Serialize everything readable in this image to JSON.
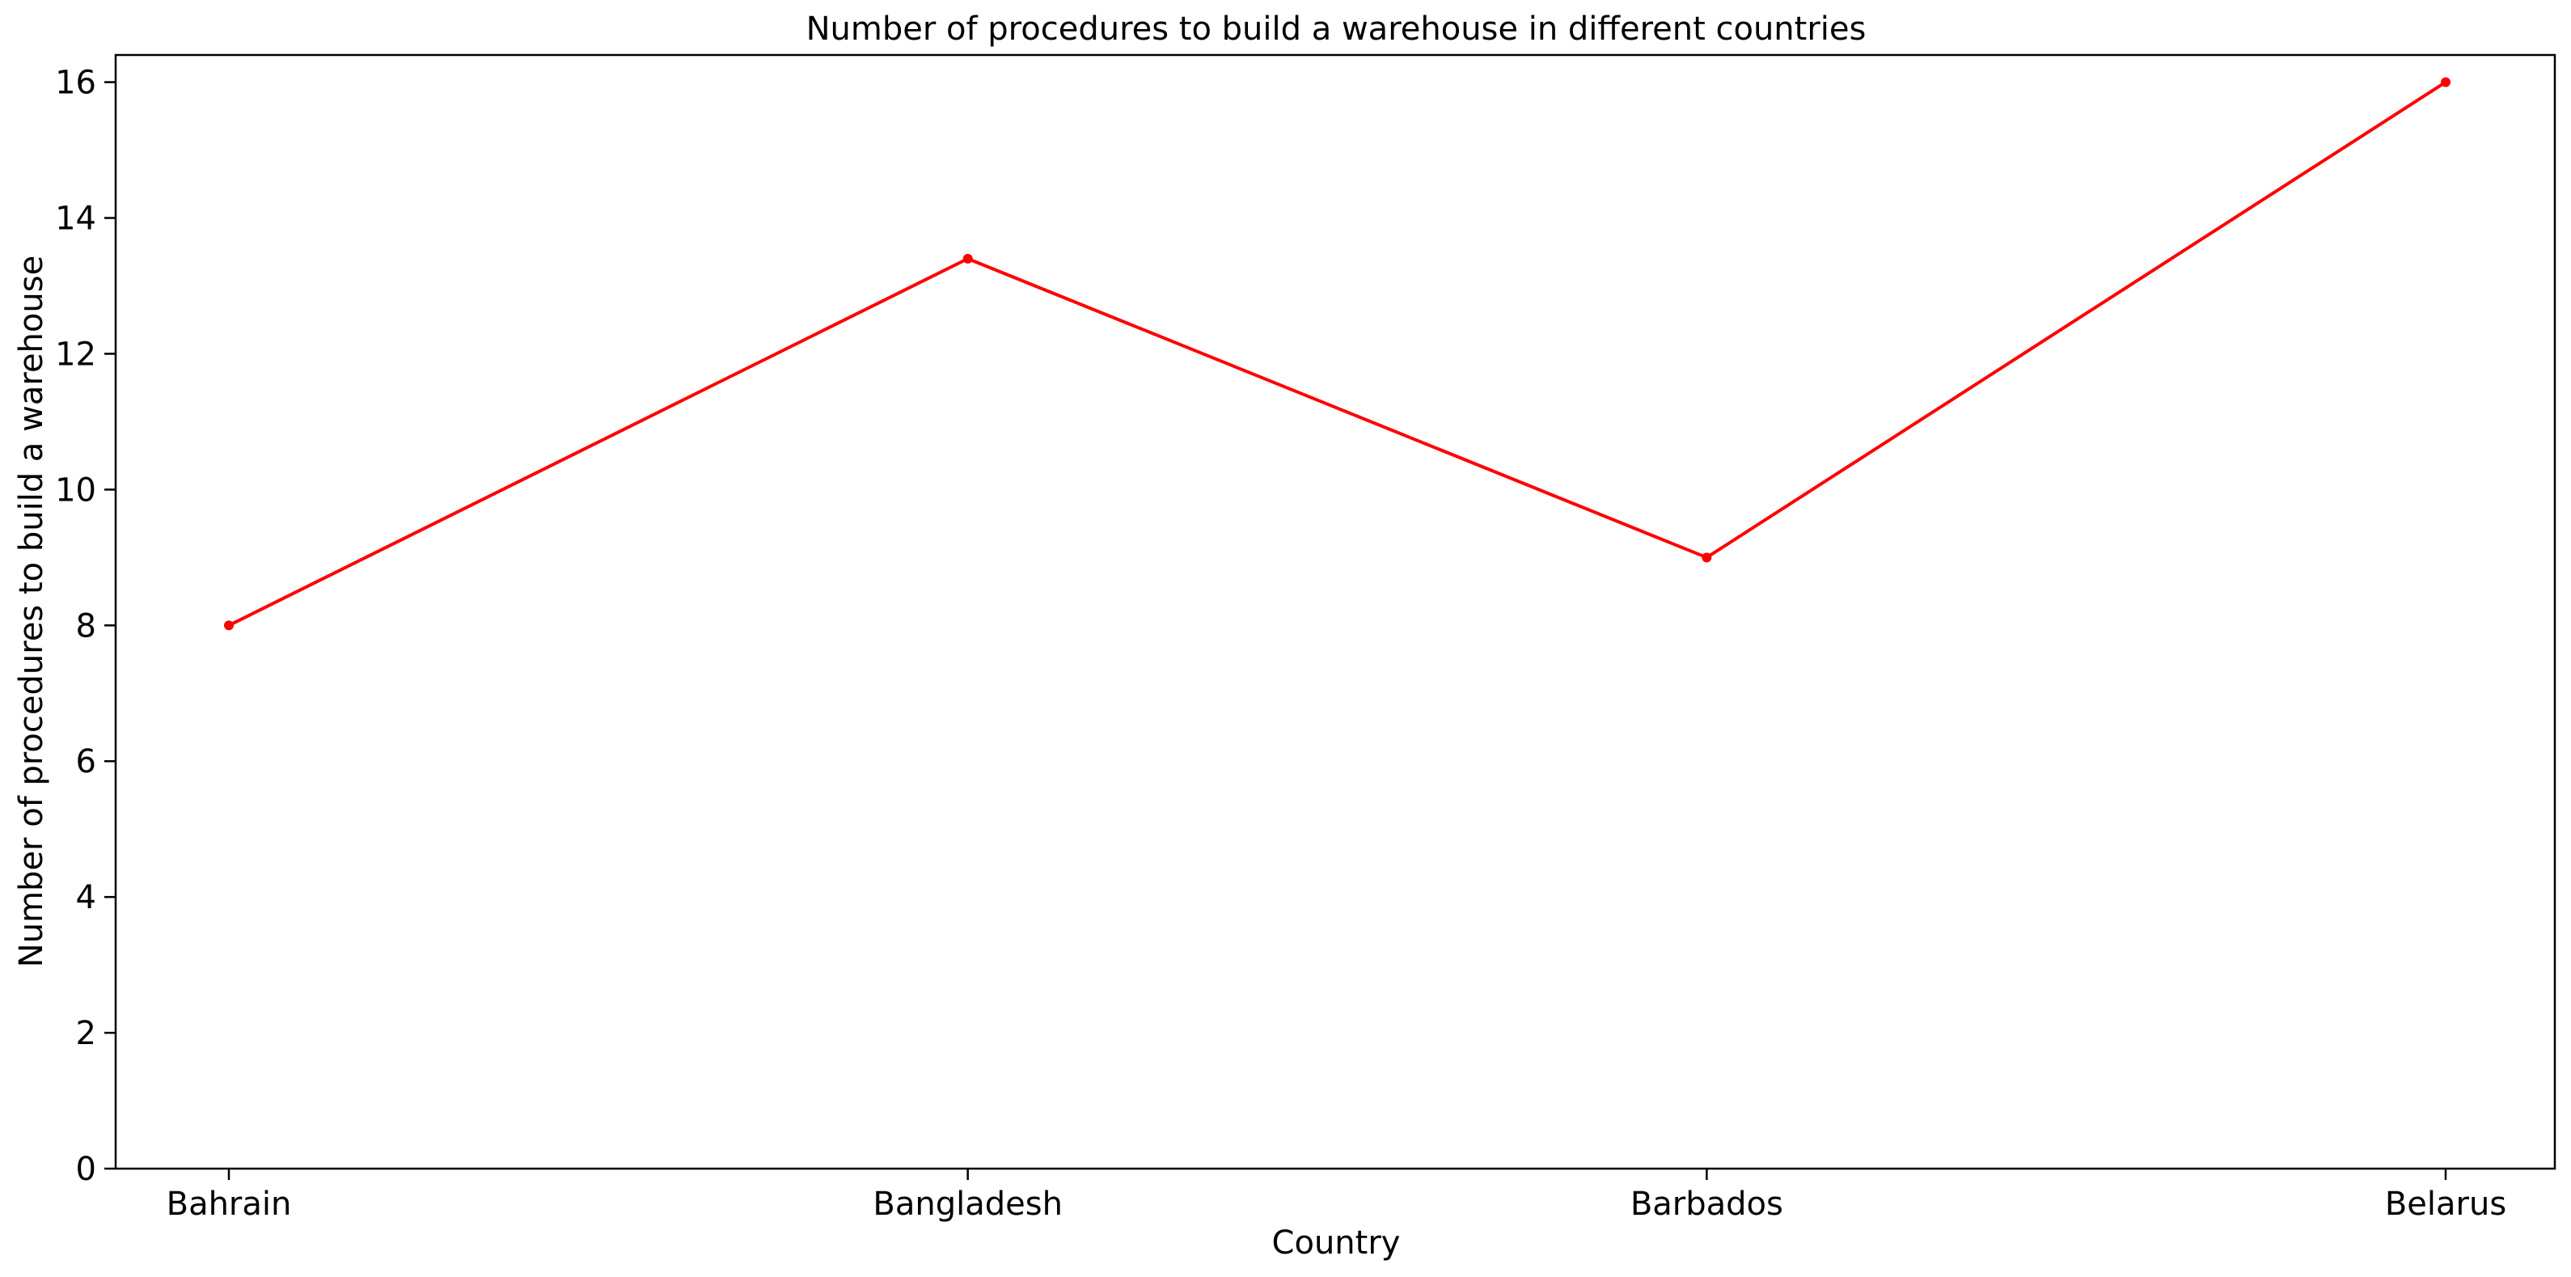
{
  "chart_data": {
    "type": "line",
    "title": "Number of procedures to build a warehouse in different countries",
    "xlabel": "Country",
    "ylabel": "Number of procedures to build a warehouse",
    "categories": [
      "Bahrain",
      "Bangladesh",
      "Barbados",
      "Belarus"
    ],
    "series": [
      {
        "values": [
          8,
          13.4,
          9,
          16
        ],
        "color": "#ff0000"
      }
    ],
    "ylim": [
      0,
      16.4
    ],
    "yticks": [
      0,
      2,
      4,
      6,
      8,
      10,
      12,
      14,
      16
    ],
    "grid": false,
    "legend": "none"
  }
}
